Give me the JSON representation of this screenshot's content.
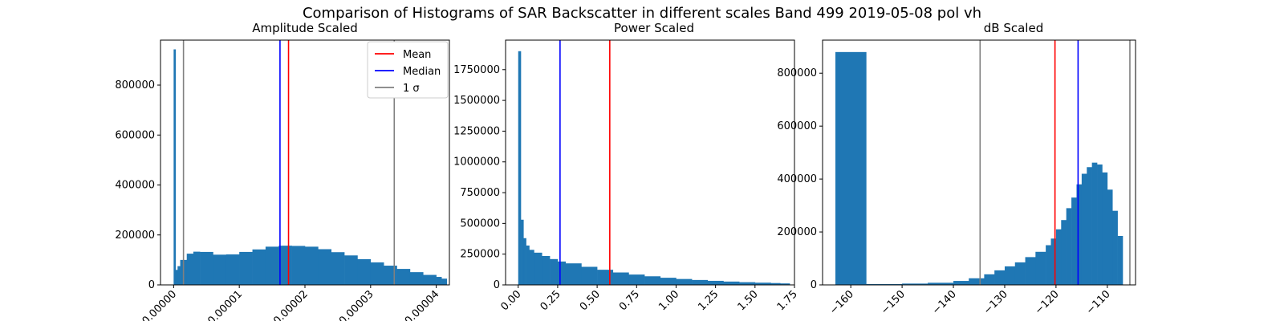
{
  "figure": {
    "suptitle": "Comparison of Histograms of SAR Backscatter in different scales     Band 499 2019-05-08 pol vh"
  },
  "legend": {
    "items": [
      {
        "label": "Mean",
        "color": "#ff0000"
      },
      {
        "label": "Median",
        "color": "#0000ff"
      },
      {
        "label": "1 σ",
        "color": "#808080"
      }
    ],
    "placement": "top-right of first panel"
  },
  "chart_data": [
    {
      "type": "bar",
      "title": "Amplitude Scaled",
      "xlabel": "",
      "ylabel": "",
      "xlim": [
        -2e-06,
        4.2e-05
      ],
      "ylim": [
        0,
        980000
      ],
      "yticks": [
        0,
        200000,
        400000,
        600000,
        800000
      ],
      "xticks": [
        0,
        1e-05,
        2e-05,
        3e-05,
        4e-05
      ],
      "xtick_labels": [
        "0.00000",
        "0.00001",
        "0.00002",
        "0.00003",
        "0.00004"
      ],
      "bar_color": "#1f77b4",
      "bins_x": [
        0.0,
        3e-07,
        6e-07,
        1e-06,
        2e-06,
        3e-06,
        4e-06,
        6e-06,
        8e-06,
        1e-05,
        1.2e-05,
        1.4e-05,
        1.6e-05,
        1.8e-05,
        2e-05,
        2.2e-05,
        2.4e-05,
        2.6e-05,
        2.8e-05,
        3e-05,
        3.2e-05,
        3.4e-05,
        3.6e-05,
        3.8e-05,
        4e-05,
        4.08e-05
      ],
      "bins_y": [
        943000,
        60000,
        75000,
        100000,
        125000,
        133000,
        132000,
        121000,
        122000,
        132000,
        142000,
        153000,
        157000,
        156000,
        153000,
        143000,
        131000,
        118000,
        103000,
        90000,
        77000,
        64000,
        51000,
        40000,
        32000,
        25000
      ],
      "vlines": {
        "mean": 1.75e-05,
        "median": 1.62e-05,
        "sigma": [
          1.5e-06,
          3.36e-05
        ]
      }
    },
    {
      "type": "bar",
      "title": "Power Scaled",
      "xlabel": "",
      "ylabel": "",
      "xlim": [
        -0.08,
        1.75
      ],
      "ylim": [
        0,
        1990000
      ],
      "yticks": [
        0,
        250000,
        500000,
        750000,
        1000000,
        1250000,
        1500000,
        1750000
      ],
      "xticks": [
        0.0,
        0.25,
        0.5,
        0.75,
        1.0,
        1.25,
        1.5,
        1.75
      ],
      "xtick_labels": [
        "0.00",
        "0.25",
        "0.50",
        "0.75",
        "1.00",
        "1.25",
        "1.50",
        "1.75"
      ],
      "bar_color": "#1f77b4",
      "bins_x": [
        0.0,
        0.0167,
        0.0333,
        0.05,
        0.07,
        0.1,
        0.15,
        0.2,
        0.25,
        0.3,
        0.4,
        0.5,
        0.6,
        0.7,
        0.8,
        0.9,
        1.0,
        1.1,
        1.2,
        1.3,
        1.4,
        1.5,
        1.6,
        1.66
      ],
      "bins_y": [
        1900000,
        530000,
        380000,
        320000,
        285000,
        262000,
        235000,
        210000,
        190000,
        175000,
        147000,
        123000,
        101000,
        84000,
        70000,
        58000,
        48000,
        40000,
        33000,
        27000,
        22000,
        18000,
        15000,
        12000
      ],
      "vlines": {
        "mean": 0.58,
        "median": 0.265,
        "sigma": []
      }
    },
    {
      "type": "bar",
      "title": "dB Scaled",
      "xlabel": "",
      "ylabel": "",
      "xlim": [
        -165.5,
        -104.5
      ],
      "ylim": [
        0,
        925000
      ],
      "yticks": [
        0,
        200000,
        400000,
        600000,
        800000
      ],
      "xticks": [
        -160,
        -150,
        -140,
        -130,
        -120,
        -110
      ],
      "xtick_labels": [
        "−160",
        "−150",
        "−140",
        "−130",
        "−120",
        "−110"
      ],
      "bar_color": "#1f77b4",
      "bins_x": [
        -163,
        -157,
        -150,
        -145,
        -140,
        -137,
        -134,
        -132,
        -130,
        -128,
        -126,
        -124,
        -122,
        -121,
        -120,
        -119,
        -118,
        -117,
        -116,
        -115,
        -114,
        -113,
        -112,
        -111,
        -110,
        -109,
        -108
      ],
      "bins_y": [
        880000,
        3000,
        5000,
        8000,
        15000,
        25000,
        40000,
        55000,
        70000,
        85000,
        105000,
        125000,
        150000,
        175000,
        210000,
        245000,
        290000,
        330000,
        380000,
        420000,
        445000,
        462000,
        455000,
        425000,
        360000,
        280000,
        185000
      ],
      "vlines": {
        "mean": -120.2,
        "median": -115.7,
        "sigma": [
          -134.8,
          -105.6
        ]
      }
    }
  ]
}
